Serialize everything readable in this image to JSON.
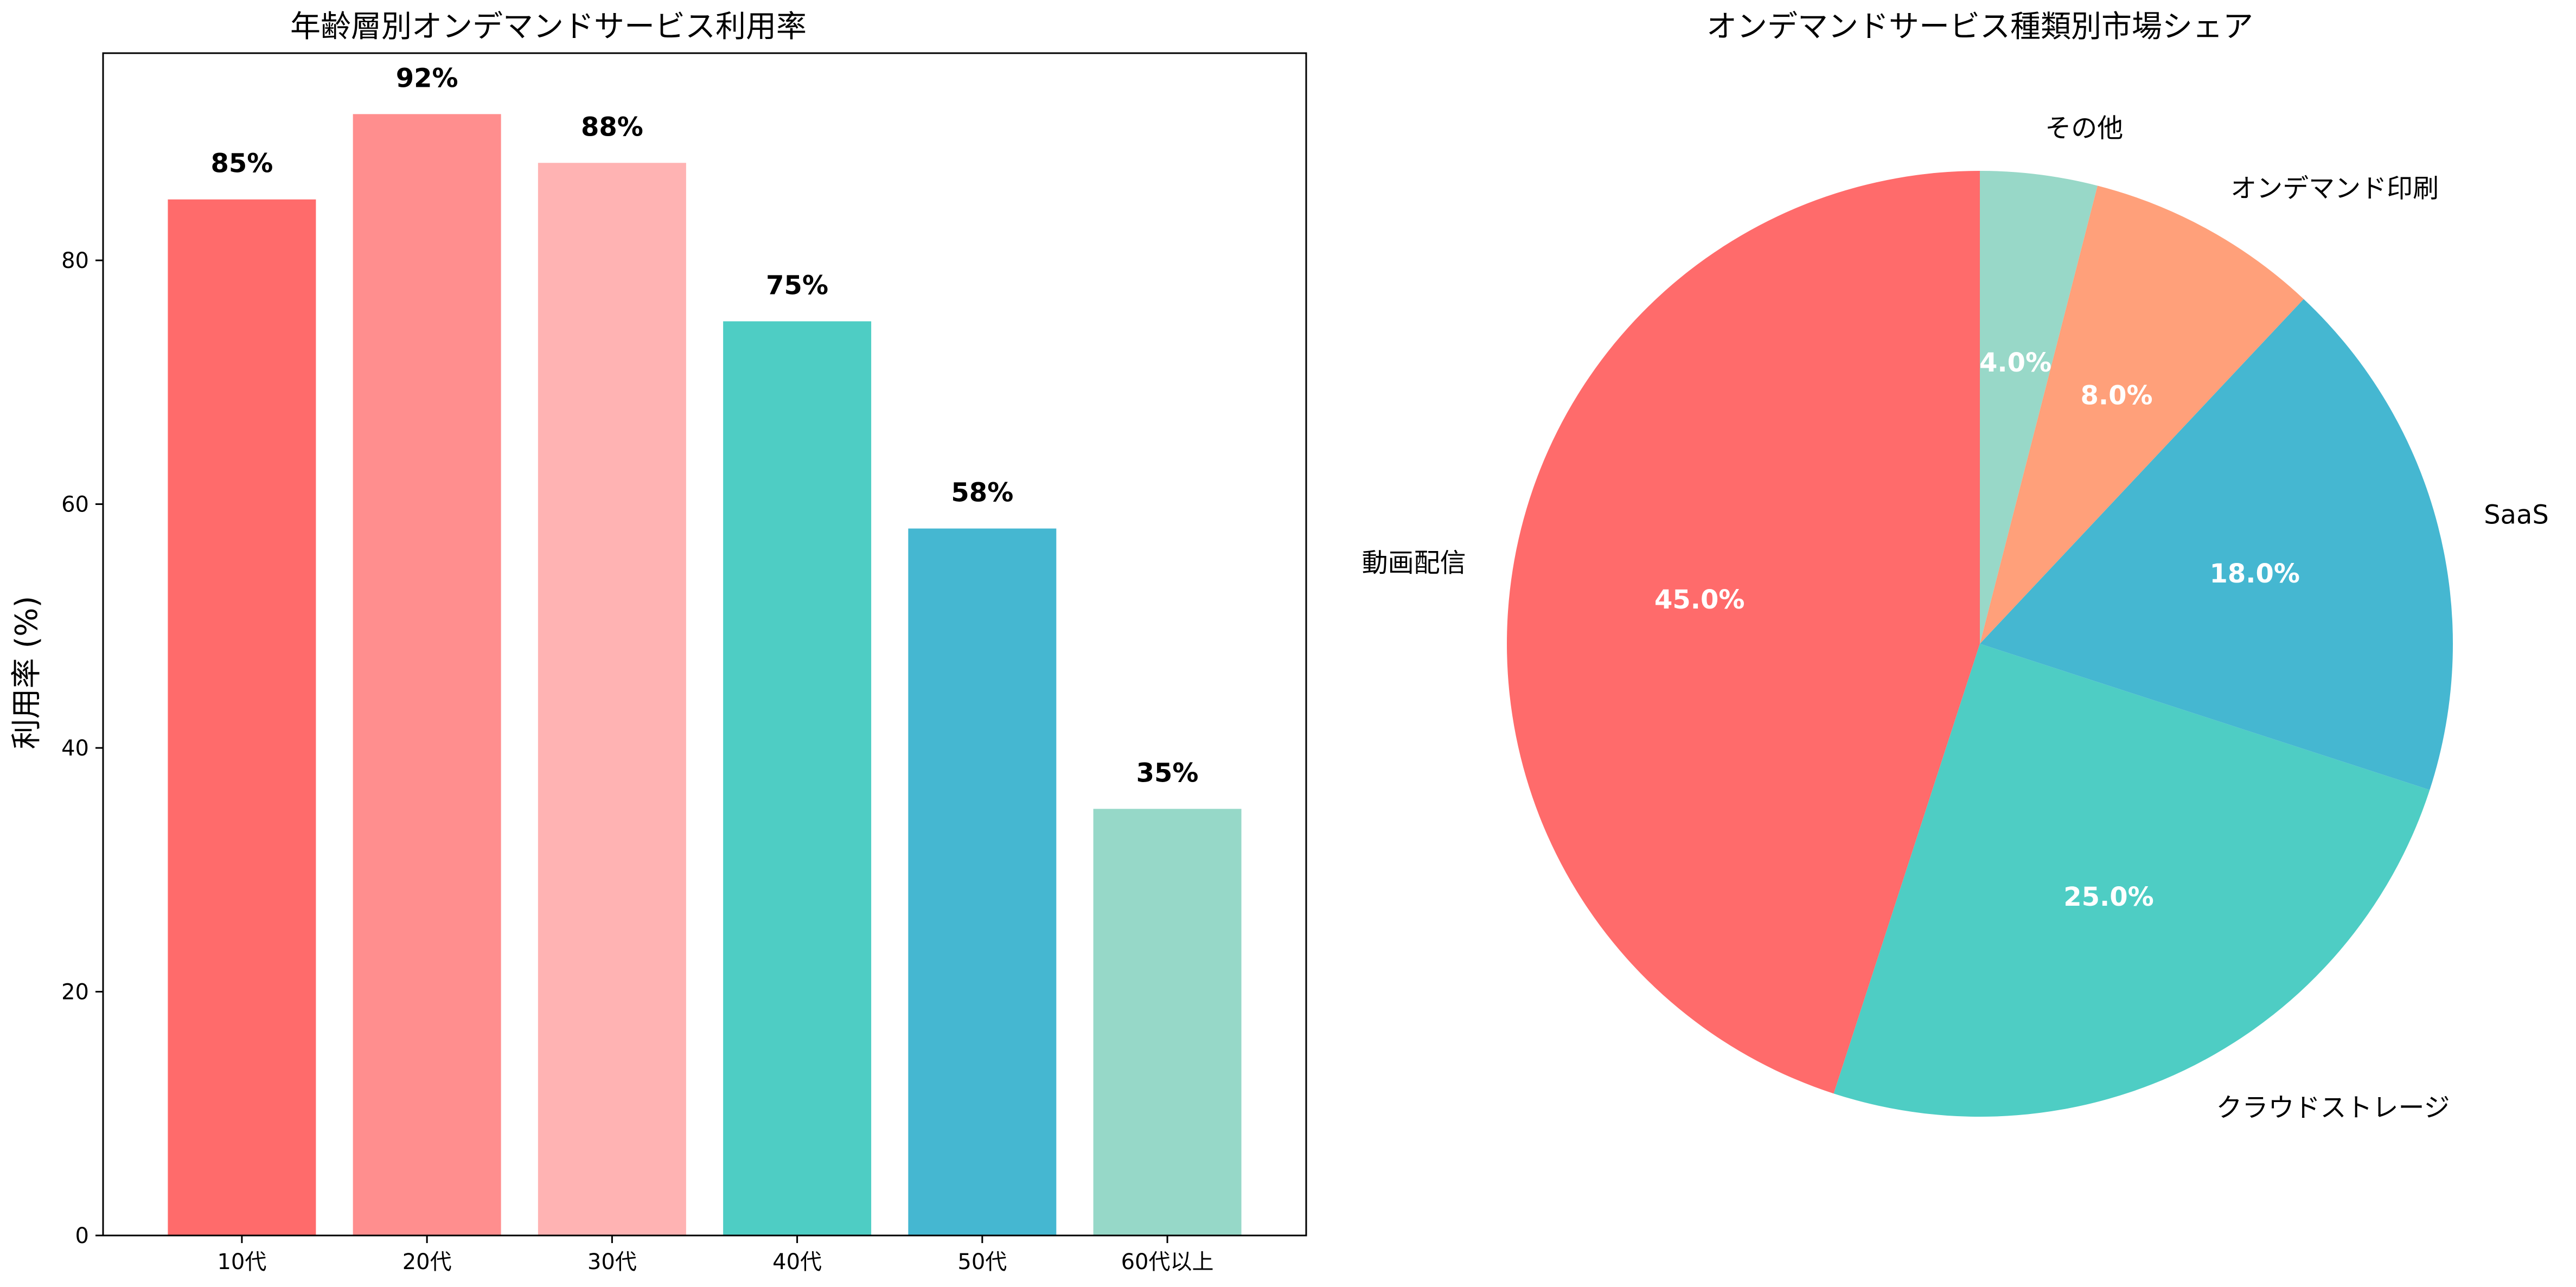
{
  "chart_data": [
    {
      "type": "bar",
      "title": "年齢層別オンデマンドサービス利用率",
      "ylabel": "利用率 (%)",
      "xlabel": "",
      "categories": [
        "10代",
        "20代",
        "30代",
        "40代",
        "50代",
        "60代以上"
      ],
      "values": [
        85,
        92,
        88,
        75,
        58,
        35
      ],
      "value_labels": [
        "85%",
        "92%",
        "88%",
        "75%",
        "58%",
        "35%"
      ],
      "colors": [
        "#FF6B6B",
        "#FF8E8E",
        "#FFB3B3",
        "#4ECDC4",
        "#45B7D1",
        "#96D8C8"
      ],
      "ylim": [
        0,
        97
      ],
      "yticks": [
        0,
        20,
        40,
        60,
        80
      ],
      "grid": false
    },
    {
      "type": "pie",
      "title": "オンデマンドサービス種類別市場シェア",
      "labels": [
        "動画配信",
        "クラウドストレージ",
        "SaaS",
        "オンデマンド印刷",
        "その他"
      ],
      "values": [
        45.0,
        25.0,
        18.0,
        8.0,
        4.0
      ],
      "pct_labels": [
        "45.0%",
        "25.0%",
        "18.0%",
        "8.0%",
        "4.0%"
      ],
      "colors": [
        "#FF6B6B",
        "#4ECDC4",
        "#45B7D1",
        "#FFA07A",
        "#98D8C8"
      ],
      "start_angle_deg": 90,
      "direction": "counterclockwise"
    }
  ]
}
